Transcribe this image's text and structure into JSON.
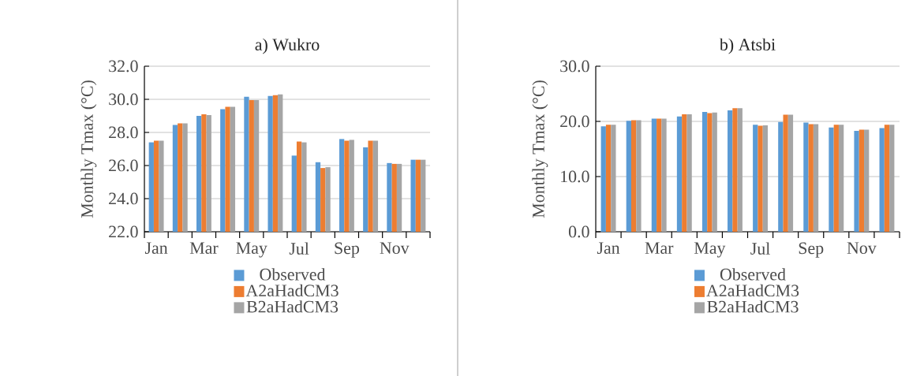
{
  "chart_data": [
    {
      "type": "bar",
      "title": "a) Wukro",
      "ylabel": "Monthly Tmax (°C)",
      "categories": [
        "Jan",
        null,
        "Mar",
        null,
        "May",
        null,
        "Jul",
        null,
        "Sep",
        null,
        "Nov",
        null
      ],
      "series": [
        {
          "name": "Observed",
          "color": "#5b9bd5",
          "values": [
            27.4,
            28.45,
            29.0,
            29.4,
            30.15,
            30.2,
            26.6,
            26.2,
            27.6,
            27.1,
            26.15,
            26.35
          ]
        },
        {
          "name": "A2aHadCM3",
          "color": "#ed7d31",
          "values": [
            27.5,
            28.55,
            29.1,
            29.55,
            29.95,
            30.25,
            27.45,
            25.85,
            27.5,
            27.5,
            26.1,
            26.35
          ]
        },
        {
          "name": "B2aHadCM3",
          "color": "#a5a5a5",
          "values": [
            27.5,
            28.55,
            29.05,
            29.55,
            29.95,
            30.3,
            27.4,
            25.9,
            27.55,
            27.5,
            26.1,
            26.35
          ]
        }
      ],
      "ylim": [
        22,
        32
      ],
      "yticks": [
        {
          "value": 22,
          "label": "22.0"
        },
        {
          "value": 24,
          "label": "24.0"
        },
        {
          "value": 26,
          "label": "26.0"
        },
        {
          "value": 28,
          "label": "28.0"
        },
        {
          "value": 30,
          "label": "30.0"
        },
        {
          "value": 32,
          "label": "32.0"
        }
      ],
      "grid": "y",
      "legend": "bottom"
    },
    {
      "type": "bar",
      "title": "b) Atsbi",
      "ylabel": "Monthly Tmax (°C)",
      "categories": [
        "Jan",
        null,
        "Mar",
        null,
        "May",
        null,
        "Jul",
        null,
        "Sep",
        null,
        "Nov",
        null
      ],
      "series": [
        {
          "name": "Observed",
          "color": "#5b9bd5",
          "values": [
            19.1,
            20.1,
            20.5,
            20.9,
            21.7,
            22.0,
            19.4,
            19.9,
            19.8,
            18.9,
            18.3,
            18.8
          ]
        },
        {
          "name": "A2aHadCM3",
          "color": "#ed7d31",
          "values": [
            19.4,
            20.2,
            20.5,
            21.3,
            21.5,
            22.4,
            19.2,
            21.2,
            19.5,
            19.4,
            18.5,
            19.4
          ]
        },
        {
          "name": "B2aHadCM3",
          "color": "#a5a5a5",
          "values": [
            19.4,
            20.2,
            20.5,
            21.3,
            21.6,
            22.4,
            19.3,
            21.2,
            19.5,
            19.4,
            18.5,
            19.4
          ]
        }
      ],
      "ylim": [
        0,
        30
      ],
      "yticks": [
        {
          "value": 0,
          "label": "0.0"
        },
        {
          "value": 10,
          "label": "10.0"
        },
        {
          "value": 20,
          "label": "20.0"
        },
        {
          "value": 30,
          "label": "30.0"
        }
      ],
      "grid": "y",
      "legend": "bottom"
    }
  ]
}
